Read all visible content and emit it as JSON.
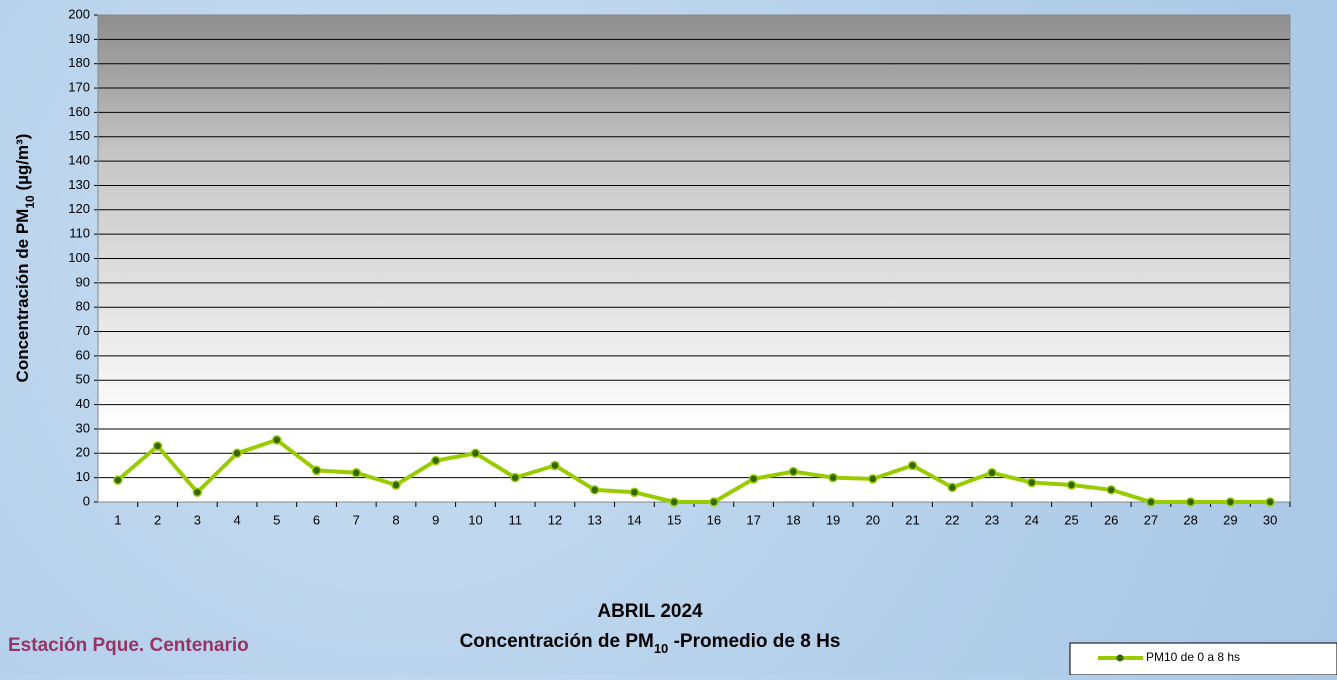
{
  "chart_data": {
    "type": "line",
    "title": "ABRIL 2024",
    "subtitle": [
      "Concentración de PM",
      "10",
      " -Promedio de 8 Hs"
    ],
    "ylabel": [
      "Concentración de PM",
      "10",
      " (µg/m³)"
    ],
    "annotation": "Estación Pque. Centenario",
    "categories": [
      "1",
      "2",
      "3",
      "4",
      "5",
      "6",
      "7",
      "8",
      "9",
      "10",
      "11",
      "12",
      "13",
      "14",
      "15",
      "16",
      "17",
      "18",
      "19",
      "20",
      "21",
      "22",
      "23",
      "24",
      "25",
      "26",
      "27",
      "28",
      "29",
      "30"
    ],
    "series": [
      {
        "name": "PM10 de 0 a 8 hs",
        "color": "#99cc00",
        "marker_color": "#336600",
        "values": [
          9,
          23,
          4,
          20,
          25.5,
          13,
          12,
          7,
          17,
          20,
          10,
          15,
          5,
          4,
          0,
          0,
          9.5,
          12.5,
          10,
          9.5,
          15,
          6,
          12,
          8,
          7,
          5,
          0,
          0,
          0,
          0
        ]
      }
    ],
    "ylim": [
      0,
      200
    ],
    "yticks": [
      0,
      10,
      20,
      30,
      40,
      50,
      60,
      70,
      80,
      90,
      100,
      110,
      120,
      130,
      140,
      150,
      160,
      170,
      180,
      190,
      200
    ],
    "grid": true,
    "legend": "bottom-right"
  }
}
